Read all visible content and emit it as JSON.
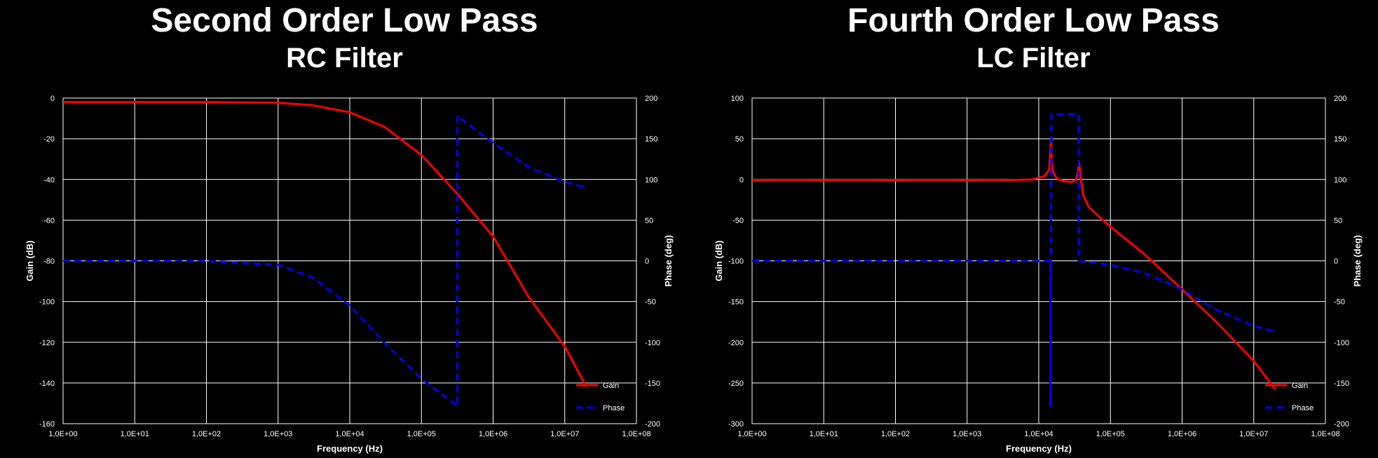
{
  "charts": [
    {
      "title": "Second Order Low Pass",
      "subtitle": "RC Filter"
    },
    {
      "title": "Fourth Order Low Pass",
      "subtitle": "LC Filter"
    }
  ],
  "colors": {
    "background": "#000000",
    "grid": "#ffffff",
    "gain": "#ff0000",
    "phase": "#0000ff",
    "text": "#ffffff"
  },
  "chart_data": [
    {
      "type": "line",
      "title": "Second Order Low Pass",
      "subtitle": "RC Filter",
      "xlabel": "Frequency (Hz)",
      "ylabel": "Gain (dB)",
      "y2label": "Phase (deg)",
      "xscale": "log",
      "xlim": [
        1,
        100000000
      ],
      "ylim": [
        -160,
        0
      ],
      "y2lim": [
        -200,
        200
      ],
      "grid": true,
      "legend_position": "bottom-right",
      "xticks": [
        "1,0E+00",
        "1,0E+01",
        "1,0E+02",
        "1,0E+03",
        "1,0E+04",
        "1,0E+05",
        "1,0E+06",
        "1,0E+07",
        "1,0E+08"
      ],
      "yticks": [
        "0",
        "-20",
        "-40",
        "-60",
        "-80",
        "-100",
        "-120",
        "-140",
        "-160"
      ],
      "y2ticks": [
        "200",
        "150",
        "100",
        "50",
        "0",
        "-50",
        "-100",
        "-150",
        "-200"
      ],
      "series": [
        {
          "name": "Gain",
          "axis": "left",
          "style": "solid",
          "x": [
            1,
            10,
            100,
            1000,
            3000,
            10000,
            30000,
            100000,
            316000,
            1000000,
            3160000,
            10000000,
            20000000
          ],
          "y": [
            -2,
            -2,
            -2,
            -2.3,
            -3.5,
            -7,
            -14,
            -28,
            -47,
            -68,
            -98,
            -122,
            -142
          ]
        },
        {
          "name": "Phase",
          "axis": "right",
          "style": "dashed",
          "x": [
            1,
            10,
            100,
            1000,
            3000,
            10000,
            30000,
            100000,
            316000,
            316000,
            1000000,
            3160000,
            10000000,
            20000000
          ],
          "y": [
            0,
            0,
            0,
            -5,
            -20,
            -55,
            -100,
            -145,
            -178,
            178,
            145,
            115,
            97,
            90
          ]
        }
      ]
    },
    {
      "type": "line",
      "title": "Fourth Order Low Pass",
      "subtitle": "LC Filter",
      "xlabel": "Frequency (Hz)",
      "ylabel": "Gain (dB)",
      "y2label": "Phase (deg)",
      "xscale": "log",
      "xlim": [
        1,
        100000000
      ],
      "ylim": [
        -300,
        100
      ],
      "y2lim": [
        -200,
        200
      ],
      "grid": true,
      "legend_position": "bottom-right",
      "xticks": [
        "1,0E+00",
        "1,0E+01",
        "1,0E+02",
        "1,0E+03",
        "1,0E+04",
        "1,0E+05",
        "1,0E+06",
        "1,0E+07",
        "1,0E+08"
      ],
      "yticks": [
        "100",
        "50",
        "0",
        "-50",
        "-100",
        "-150",
        "-200",
        "-250",
        "-300"
      ],
      "y2ticks": [
        "200",
        "150",
        "100",
        "50",
        "0",
        "-50",
        "-100",
        "-150",
        "-200"
      ],
      "series": [
        {
          "name": "Gain",
          "axis": "left",
          "style": "solid",
          "x": [
            1,
            1000,
            4000,
            8000,
            12000,
            14000,
            14800,
            15200,
            16000,
            18000,
            22000,
            28000,
            33000,
            35500,
            36500,
            38000,
            42000,
            50000,
            70000,
            100000,
            300000,
            1000000,
            3000000,
            10000000,
            20000000
          ],
          "y": [
            -1,
            -1,
            -1,
            0,
            4,
            12,
            48,
            20,
            8,
            1,
            -2,
            -3,
            -1,
            10,
            22,
            4,
            -20,
            -34,
            -46,
            -58,
            -92,
            -135,
            -175,
            -223,
            -258
          ]
        },
        {
          "name": "Phase",
          "axis": "right",
          "style": "dashed",
          "x": [
            1,
            1000,
            10000,
            13000,
            14500,
            14500,
            15000,
            35000,
            36000,
            36000,
            100000,
            300000,
            1000000,
            3000000,
            10000000,
            20000000
          ],
          "y": [
            0,
            0,
            0,
            0,
            0,
            -178,
            180,
            180,
            180,
            0,
            -5,
            -15,
            -35,
            -60,
            -80,
            -87
          ]
        }
      ]
    }
  ]
}
